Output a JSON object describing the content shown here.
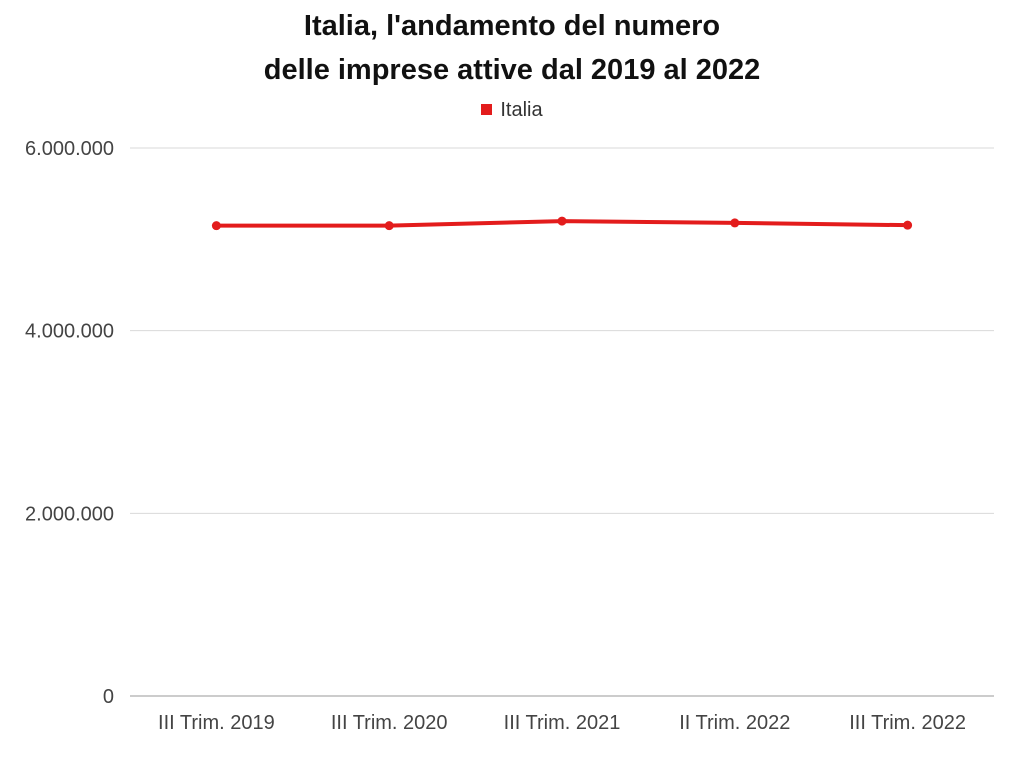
{
  "chart_data": {
    "type": "line",
    "title_lines": [
      "Italia,  l'andamento del numero",
      "delle imprese attive dal 2019 al 2022"
    ],
    "categories": [
      "III Trim. 2019",
      "III Trim. 2020",
      "III Trim. 2021",
      "II Trim. 2022",
      "III Trim. 2022"
    ],
    "series": [
      {
        "name": "Italia",
        "color": "#e31c1c",
        "values": [
          5150000,
          5150000,
          5200000,
          5180000,
          5155000
        ]
      }
    ],
    "y_ticks": [
      {
        "value": 0,
        "label": "0"
      },
      {
        "value": 2000000,
        "label": "2.000.000"
      },
      {
        "value": 4000000,
        "label": "4.000.000"
      },
      {
        "value": 6000000,
        "label": "6.000.000"
      }
    ],
    "ylim": [
      0,
      6000000
    ],
    "grid": true,
    "legend_position": "top-center",
    "xlabel": "",
    "ylabel": ""
  }
}
